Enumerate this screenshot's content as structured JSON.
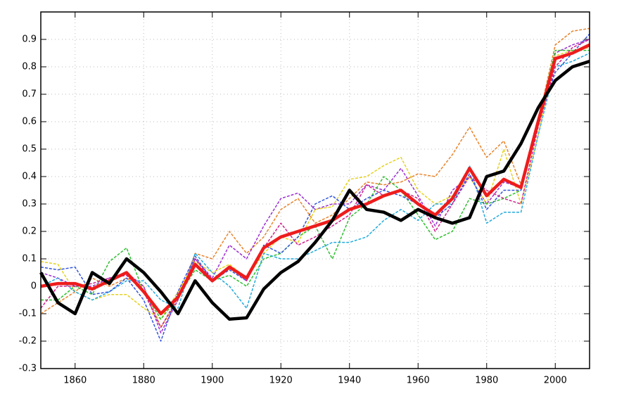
{
  "chart_data": {
    "type": "line",
    "x": [
      1850,
      1855,
      1860,
      1865,
      1870,
      1875,
      1880,
      1885,
      1890,
      1895,
      1900,
      1905,
      1910,
      1915,
      1920,
      1925,
      1930,
      1935,
      1940,
      1945,
      1950,
      1955,
      1960,
      1965,
      1970,
      1975,
      1980,
      1985,
      1990,
      1995,
      2000,
      2005,
      2010
    ],
    "xlim": [
      1850,
      2010
    ],
    "xticks": [
      1860,
      1880,
      1900,
      1920,
      1940,
      1960,
      1980,
      2000
    ],
    "ylim": [
      -0.3,
      1.0
    ],
    "yticks": [
      -0.3,
      -0.2,
      -0.1,
      0,
      0.1,
      0.2,
      0.3,
      0.4,
      0.5,
      0.6,
      0.7,
      0.8,
      0.9
    ],
    "grid": true,
    "series": [
      {
        "color": "#e8832a",
        "style": "dashed",
        "values": [
          -0.1,
          -0.06,
          -0.02,
          0.03,
          0.0,
          0.03,
          0.0,
          -0.15,
          -0.05,
          0.12,
          0.1,
          0.2,
          0.12,
          0.18,
          0.28,
          0.32,
          0.23,
          0.26,
          0.32,
          0.38,
          0.37,
          0.38,
          0.41,
          0.4,
          0.48,
          0.58,
          0.47,
          0.53,
          0.37,
          0.6,
          0.88,
          0.93,
          0.94
        ]
      },
      {
        "color": "#9b30d0",
        "style": "dashed",
        "values": [
          0.05,
          0.03,
          0.0,
          0.0,
          0.03,
          0.05,
          0.0,
          -0.17,
          -0.05,
          0.1,
          0.03,
          0.15,
          0.1,
          0.22,
          0.32,
          0.34,
          0.28,
          0.3,
          0.3,
          0.37,
          0.35,
          0.43,
          0.33,
          0.22,
          0.35,
          0.4,
          0.3,
          0.38,
          0.36,
          0.6,
          0.85,
          0.88,
          0.9
        ]
      },
      {
        "color": "#e6d21e",
        "style": "dashed",
        "values": [
          0.09,
          0.08,
          -0.02,
          -0.05,
          -0.03,
          -0.03,
          -0.08,
          -0.12,
          -0.02,
          0.09,
          0.05,
          0.08,
          0.03,
          0.12,
          0.18,
          0.16,
          0.28,
          0.29,
          0.39,
          0.4,
          0.44,
          0.47,
          0.35,
          0.3,
          0.33,
          0.4,
          0.3,
          0.5,
          0.3,
          0.55,
          0.84,
          0.86,
          0.87
        ]
      },
      {
        "color": "#2fbf2f",
        "style": "dashed",
        "values": [
          -0.05,
          -0.05,
          0.0,
          -0.03,
          0.09,
          0.14,
          -0.02,
          -0.12,
          -0.04,
          0.06,
          0.02,
          0.04,
          0.0,
          0.1,
          0.12,
          0.18,
          0.22,
          0.1,
          0.25,
          0.3,
          0.4,
          0.35,
          0.26,
          0.17,
          0.2,
          0.32,
          0.3,
          0.32,
          0.35,
          0.6,
          0.86,
          0.86,
          0.86
        ]
      },
      {
        "color": "#22aadd",
        "style": "dashed",
        "values": [
          0.0,
          0.03,
          -0.02,
          -0.05,
          -0.02,
          0.02,
          0.02,
          -0.05,
          -0.08,
          0.12,
          0.05,
          0.0,
          -0.08,
          0.12,
          0.1,
          0.1,
          0.13,
          0.16,
          0.16,
          0.18,
          0.24,
          0.28,
          0.24,
          0.3,
          0.3,
          0.44,
          0.23,
          0.27,
          0.27,
          0.55,
          0.8,
          0.82,
          0.85
        ]
      },
      {
        "color": "#3355dd",
        "style": "dashed",
        "values": [
          0.07,
          0.06,
          0.07,
          -0.03,
          -0.02,
          0.03,
          -0.05,
          -0.2,
          -0.02,
          0.11,
          0.02,
          0.06,
          0.02,
          0.15,
          0.12,
          0.18,
          0.3,
          0.33,
          0.28,
          0.32,
          0.35,
          0.33,
          0.3,
          0.25,
          0.3,
          0.41,
          0.28,
          0.35,
          0.35,
          0.6,
          0.78,
          0.85,
          0.92
        ]
      },
      {
        "color": "#d0208a",
        "style": "dashed",
        "values": [
          -0.08,
          0.0,
          0.0,
          0.01,
          0.03,
          0.04,
          -0.02,
          -0.15,
          -0.04,
          0.1,
          0.02,
          0.07,
          0.02,
          0.14,
          0.23,
          0.15,
          0.18,
          0.22,
          0.26,
          0.37,
          0.33,
          0.35,
          0.32,
          0.2,
          0.3,
          0.4,
          0.35,
          0.32,
          0.3,
          0.58,
          0.8,
          0.87,
          0.9
        ]
      },
      {
        "color": "#ee1c1c",
        "style": "thick",
        "values": [
          0,
          0.01,
          0.01,
          -0.01,
          0.02,
          0.05,
          -0.02,
          -0.1,
          -0.04,
          0.08,
          0.02,
          0.07,
          0.03,
          0.14,
          0.18,
          0.2,
          0.22,
          0.24,
          0.28,
          0.3,
          0.33,
          0.35,
          0.3,
          0.26,
          0.32,
          0.43,
          0.33,
          0.39,
          0.36,
          0.6,
          0.83,
          0.85,
          0.88
        ]
      },
      {
        "color": "#000000",
        "style": "thick",
        "values": [
          0.05,
          -0.06,
          -0.1,
          0.05,
          0.01,
          0.1,
          0.05,
          -0.02,
          -0.1,
          0.02,
          -0.06,
          -0.12,
          -0.115,
          -0.01,
          0.05,
          0.09,
          0.16,
          0.24,
          0.35,
          0.28,
          0.27,
          0.24,
          0.28,
          0.25,
          0.23,
          0.25,
          0.4,
          0.42,
          0.52,
          0.65,
          0.75,
          0.8,
          0.82
        ]
      }
    ]
  }
}
